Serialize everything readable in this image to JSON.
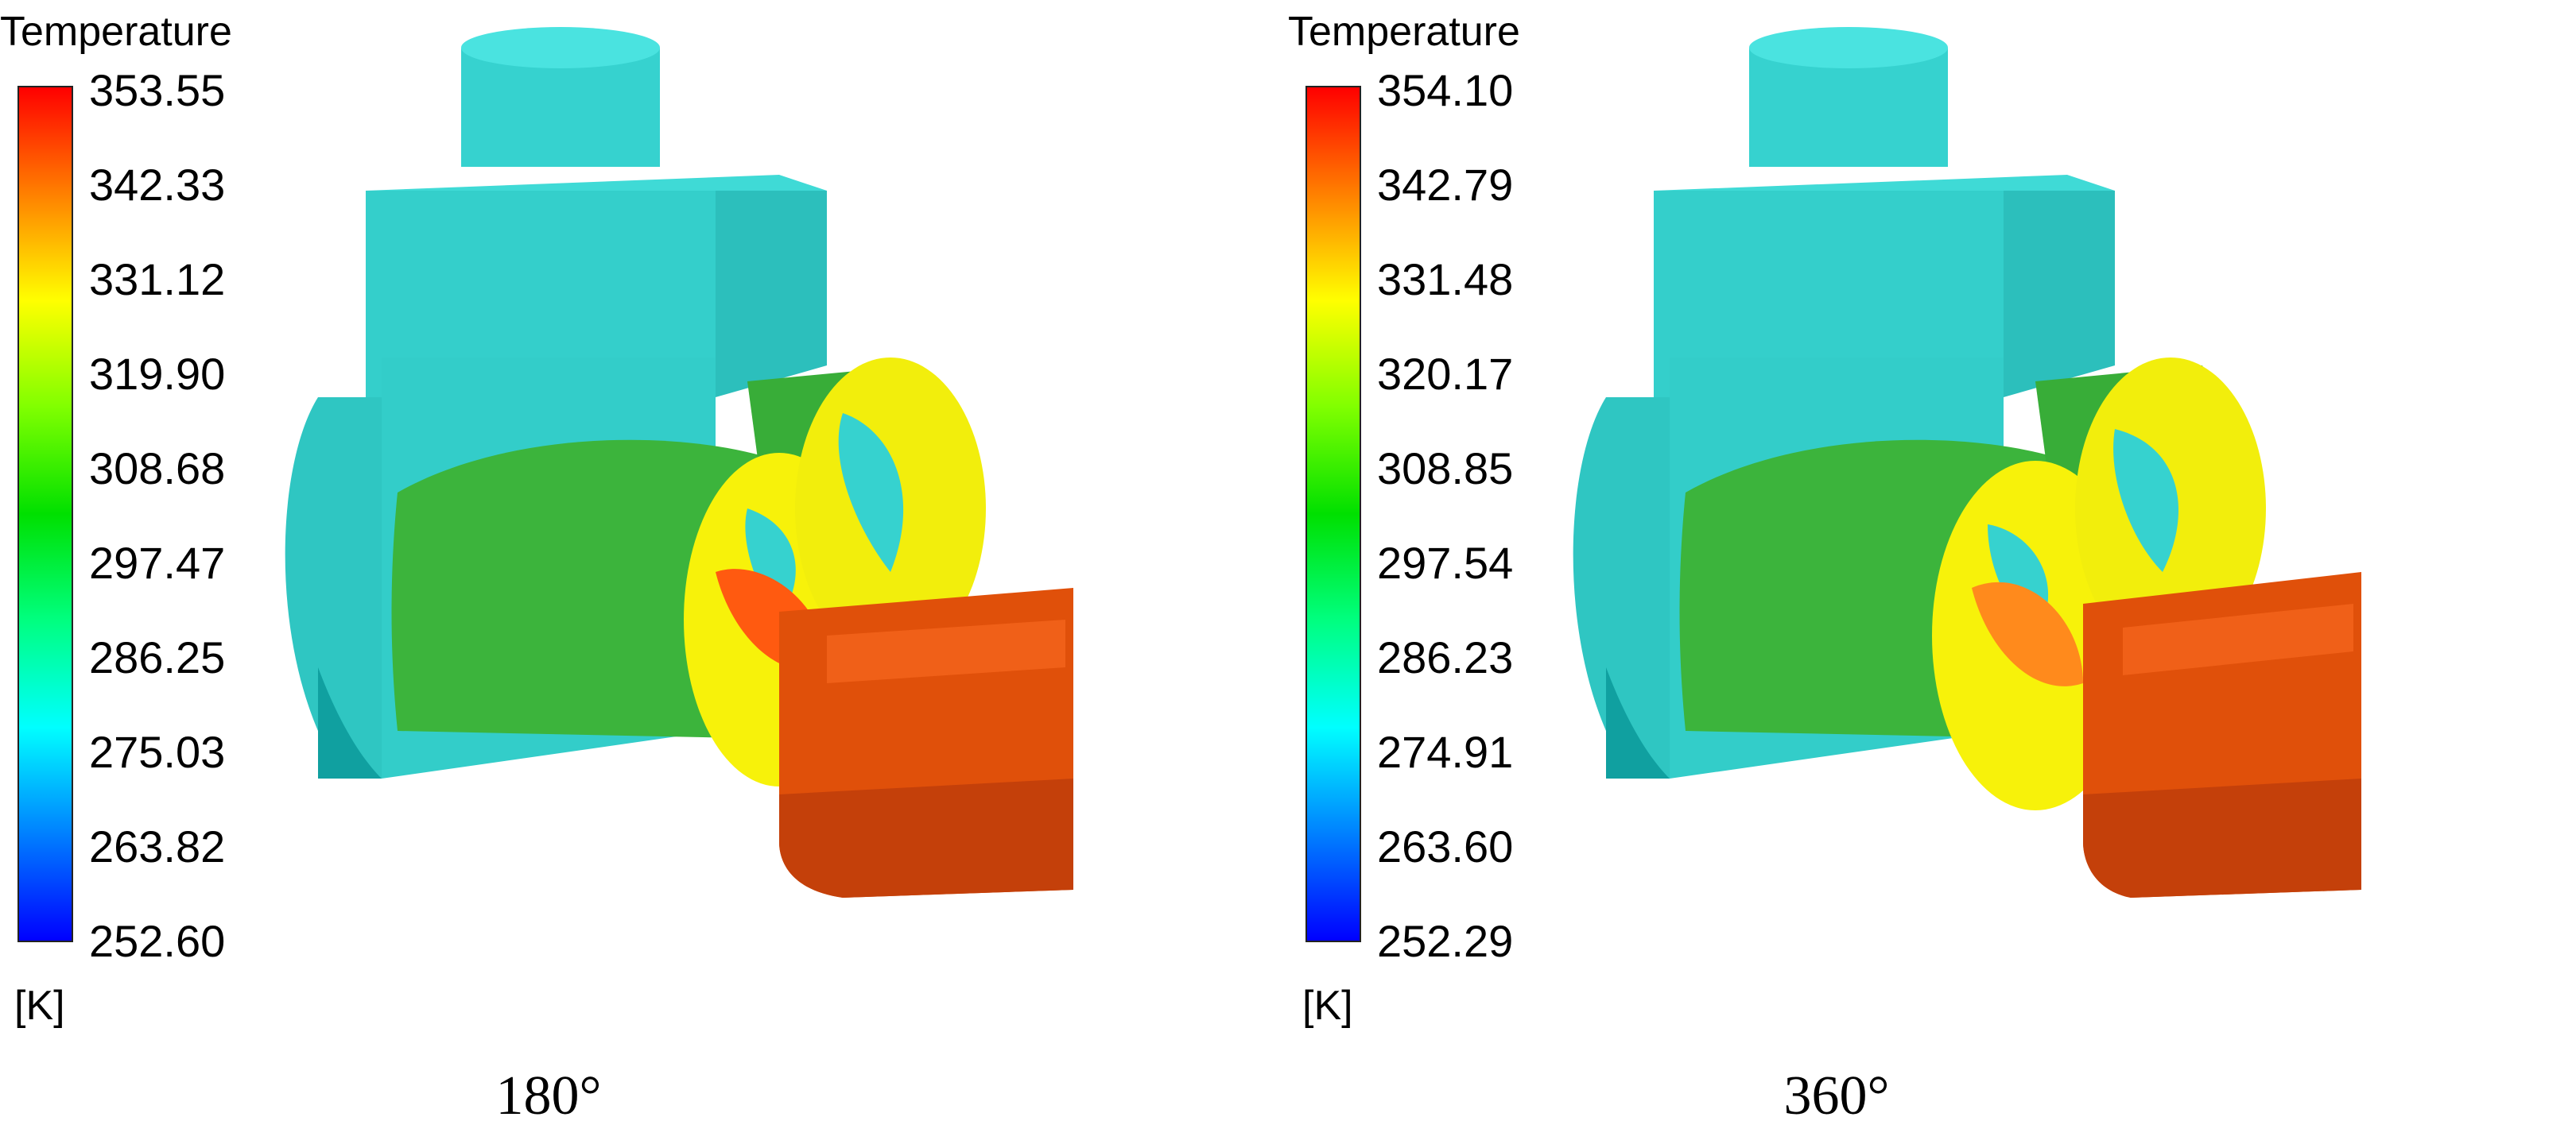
{
  "panels": [
    {
      "legend_title": "Temperature",
      "ticks": [
        "353.55",
        "342.33",
        "331.12",
        "319.90",
        "308.68",
        "297.47",
        "286.25",
        "275.03",
        "263.82",
        "252.60"
      ],
      "unit": "[K]",
      "caption": "180°"
    },
    {
      "legend_title": "Temperature",
      "ticks": [
        "354.10",
        "342.79",
        "331.48",
        "320.17",
        "308.85",
        "297.54",
        "286.23",
        "274.91",
        "263.60",
        "252.29"
      ],
      "unit": "[K]",
      "caption": "360°"
    }
  ],
  "colormap": [
    "#ff0000",
    "#ff8000",
    "#ffff00",
    "#80ff00",
    "#00e000",
    "#00ff80",
    "#00ffff",
    "#0080ff",
    "#0000ff"
  ],
  "colors": {
    "casing": "#3ad8d4",
    "casing_shade": "#10a0a0",
    "rotor_green": "#3cb43c",
    "rotor_yellow": "#ffff00",
    "hot_part": "#e0500a"
  }
}
